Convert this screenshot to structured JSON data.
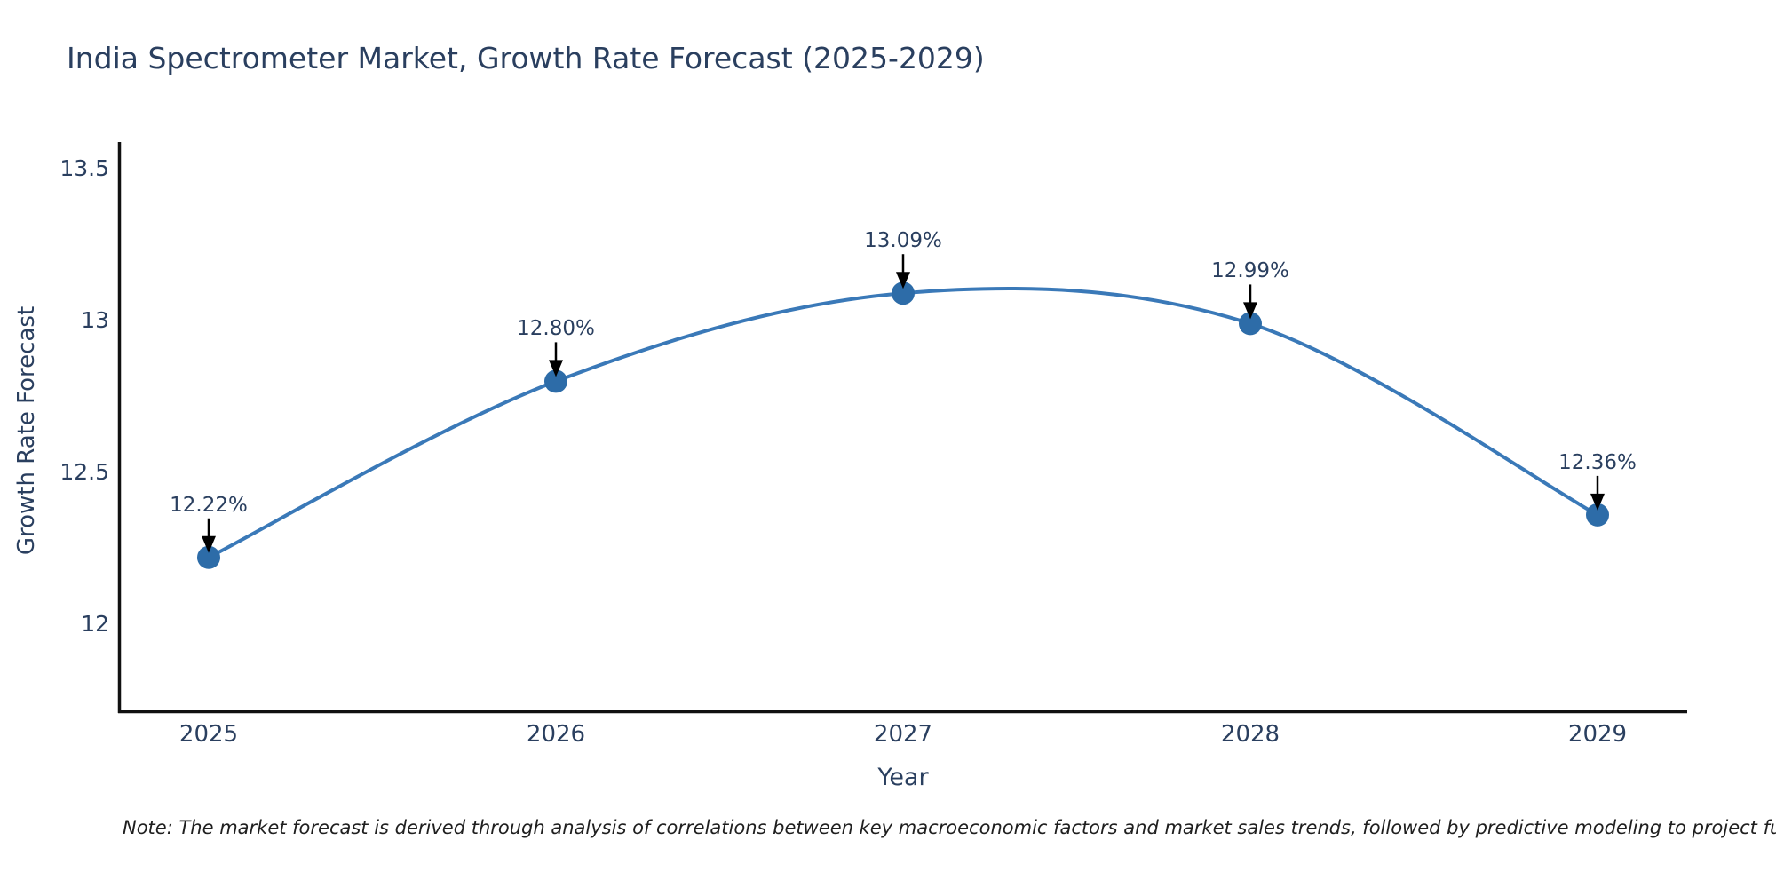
{
  "title": "India Spectrometer Market, Growth Rate Forecast (2025-2029)",
  "axes": {
    "x_label": "Year",
    "y_label": "Growth Rate Forecast"
  },
  "note": "Note: The market forecast is derived through analysis of correlations between key macroeconomic factors and market sales trends, followed by predictive modeling to project future sal",
  "chart_data": {
    "type": "line",
    "title": "India Spectrometer Market, Growth Rate Forecast (2025-2029)",
    "xlabel": "Year",
    "ylabel": "Growth Rate Forecast",
    "x": [
      2025,
      2026,
      2027,
      2028,
      2029
    ],
    "x_tick_labels": [
      "2025",
      "2026",
      "2027",
      "2028",
      "2029"
    ],
    "y_ticks": [
      12,
      12.5,
      13,
      13.5
    ],
    "y_tick_labels": [
      "12",
      "12.5",
      "13",
      "13.5"
    ],
    "series": [
      {
        "name": "Growth Rate Forecast",
        "values": [
          12.22,
          12.8,
          13.09,
          12.99,
          12.36
        ]
      }
    ],
    "point_labels": [
      "12.22%",
      "12.80%",
      "13.09%",
      "12.99%",
      "12.36%"
    ],
    "ylim": [
      11.71,
      13.6
    ],
    "xlim": [
      2024.74,
      2029.26
    ],
    "grid": false,
    "legend": false,
    "line_shape": "spline",
    "colors": {
      "line": "#3a79b8",
      "marker": "#2d6ca8",
      "arrow": "#000000",
      "axis": "#111111",
      "text": "#2a3f5f",
      "note_text": "#1f1f1f",
      "background": "#ffffff"
    }
  }
}
